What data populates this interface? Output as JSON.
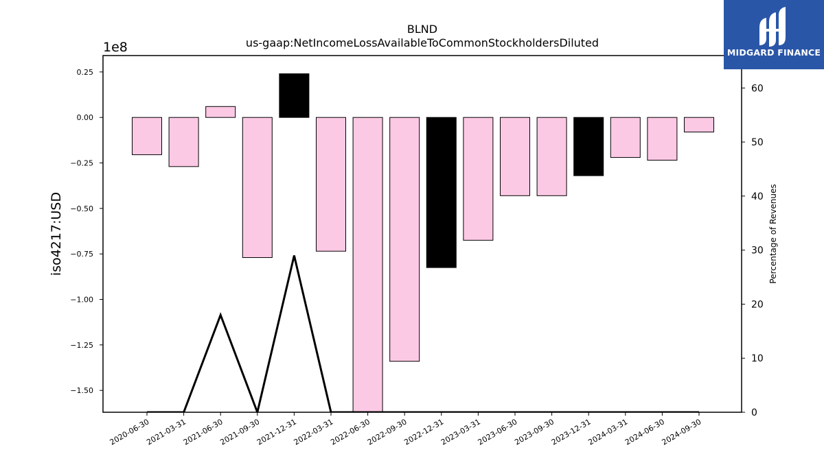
{
  "chart_data": {
    "type": "bar",
    "title": "BLND",
    "subtitle": "us-gaap:NetIncomeLossAvailableToCommonStockholdersDiluted",
    "ylabel": "iso4217:USD",
    "y_offset_label": "1e8",
    "y2label": "Percentage of Revenues",
    "ylim": [
      -1.62,
      0.34
    ],
    "y2lim": [
      0,
      66
    ],
    "yticks": [
      "0.25",
      "0.00",
      "−0.25",
      "−0.50",
      "−0.75",
      "−1.00",
      "−1.25",
      "−1.50"
    ],
    "yticks_values": [
      0.25,
      0.0,
      -0.25,
      -0.5,
      -0.75,
      -1.0,
      -1.25,
      -1.5
    ],
    "y2ticks": [
      "0",
      "10",
      "20",
      "30",
      "40",
      "50",
      "60"
    ],
    "y2ticks_values": [
      0,
      10,
      20,
      30,
      40,
      50,
      60
    ],
    "categories": [
      "2020-06-30",
      "2021-03-31",
      "2021-06-30",
      "2021-09-30",
      "2021-12-31",
      "2022-03-31",
      "2022-06-30",
      "2022-09-30",
      "2022-12-31",
      "2023-03-31",
      "2023-06-30",
      "2023-09-30",
      "2023-12-31",
      "2024-03-31",
      "2024-06-30",
      "2024-09-30"
    ],
    "values": [
      -0.205,
      -0.27,
      0.06,
      -0.77,
      0.24,
      -0.735,
      -1.62,
      -1.34,
      -0.825,
      -0.675,
      -0.43,
      -0.43,
      -0.32,
      -0.22,
      -0.235,
      -0.08
    ],
    "bar_colors": [
      "#fcc9e4",
      "#fcc9e4",
      "#fcc9e4",
      "#fcc9e4",
      "#000000",
      "#fcc9e4",
      "#fcc9e4",
      "#fcc9e4",
      "#000000",
      "#fcc9e4",
      "#fcc9e4",
      "#fcc9e4",
      "#000000",
      "#fcc9e4",
      "#fcc9e4",
      "#fcc9e4"
    ],
    "line_values": [
      0,
      0,
      18,
      0,
      29,
      0,
      0,
      0,
      0,
      0,
      0,
      0,
      0,
      0,
      0,
      0
    ],
    "line_color": "#000000"
  },
  "logo": {
    "text": "MIDGARD FINANCE",
    "icon": "midgard-logo-icon",
    "background": "#2a56a8"
  }
}
